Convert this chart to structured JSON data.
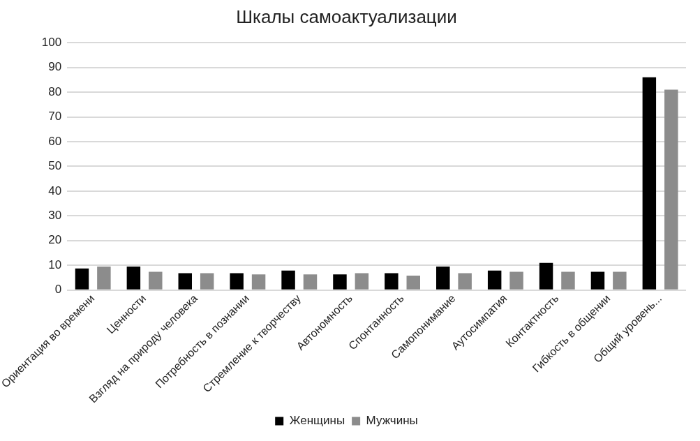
{
  "chart_data": {
    "type": "bar",
    "title": "Шкалы самоактуализации",
    "categories": [
      "Ориентация во времени",
      "Ценности",
      "Взгляд на природу человека",
      "Потребность в познании",
      "Стремление к творчеству",
      "Автономность",
      "Спонтанность",
      "Самопонимание",
      "Аутосимпатия",
      "Контактность",
      "Гибкость в общении",
      "Общий уровень..."
    ],
    "series": [
      {
        "name": "Женщины",
        "color": "#000000",
        "values": [
          8.7,
          9.5,
          6.8,
          6.8,
          7.9,
          6.3,
          6.8,
          9.5,
          7.9,
          11,
          7.4,
          86
        ]
      },
      {
        "name": "Мужчины",
        "color": "#8c8c8c",
        "values": [
          9.5,
          7.4,
          6.8,
          6.3,
          6.3,
          6.8,
          5.8,
          6.8,
          7.4,
          7.4,
          7.4,
          81
        ]
      }
    ],
    "ylim": [
      0,
      100
    ],
    "yticks": [
      0,
      10,
      20,
      30,
      40,
      50,
      60,
      70,
      80,
      90,
      100
    ],
    "grid": "y",
    "legend": "bottom"
  }
}
